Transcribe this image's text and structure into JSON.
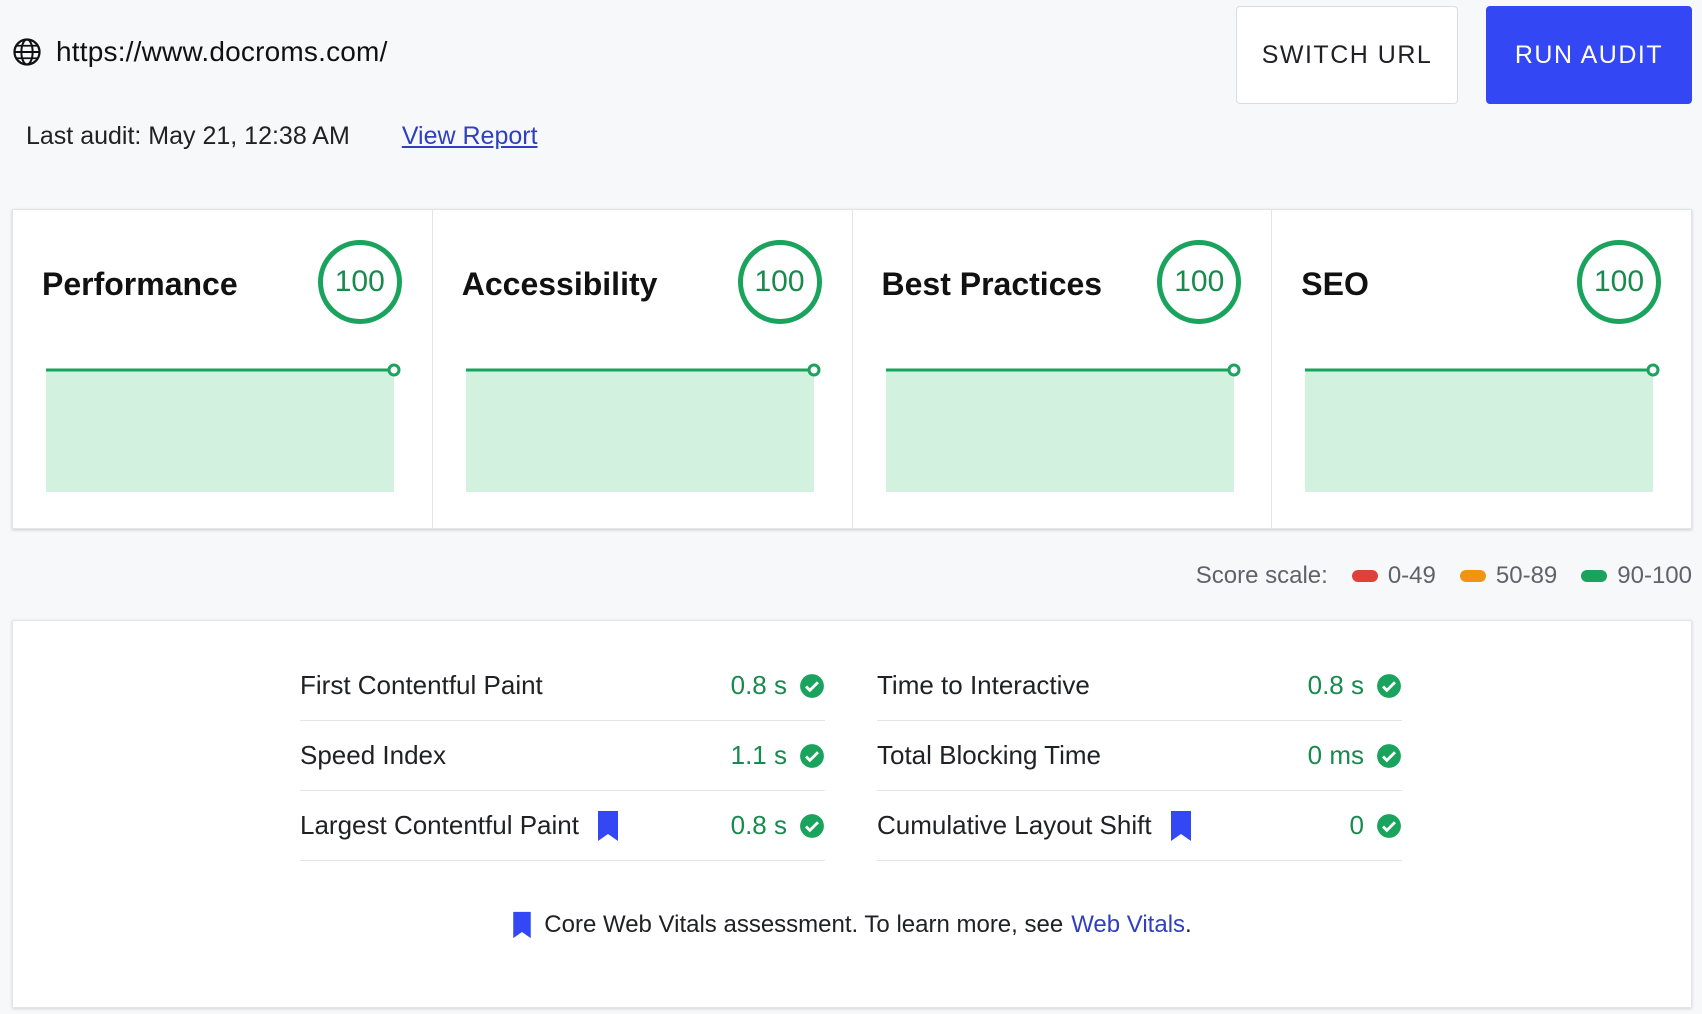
{
  "header": {
    "url": "https://www.docroms.com/",
    "globe_icon": "globe-icon",
    "switch_url_label": "SWITCH URL",
    "run_audit_label": "RUN AUDIT",
    "accent_color": "#3347f4"
  },
  "audit": {
    "last_audit": "Last audit: May 21, 12:38 AM",
    "view_report": "View Report"
  },
  "scores": [
    {
      "title": "Performance",
      "score": "100"
    },
    {
      "title": "Accessibility",
      "score": "100"
    },
    {
      "title": "Best Practices",
      "score": "100"
    },
    {
      "title": "SEO",
      "score": "100"
    }
  ],
  "scale": {
    "label": "Score scale:",
    "ranges": [
      {
        "label": "0-49",
        "color": "#e0403a"
      },
      {
        "label": "50-89",
        "color": "#f29413"
      },
      {
        "label": "90-100",
        "color": "#1aa35c"
      }
    ]
  },
  "metrics": {
    "left": [
      {
        "label": "First Contentful Paint",
        "value": "0.8 s",
        "core": false
      },
      {
        "label": "Speed Index",
        "value": "1.1 s",
        "core": false
      },
      {
        "label": "Largest Contentful Paint",
        "value": "0.8 s",
        "core": true
      }
    ],
    "right": [
      {
        "label": "Time to Interactive",
        "value": "0.8 s",
        "core": false
      },
      {
        "label": "Total Blocking Time",
        "value": "0 ms",
        "core": false
      },
      {
        "label": "Cumulative Layout Shift",
        "value": "0",
        "core": true
      }
    ],
    "footnote_text": "Core Web Vitals assessment. To learn more, see",
    "footnote_link": "Web Vitals",
    "footnote_end": "."
  }
}
